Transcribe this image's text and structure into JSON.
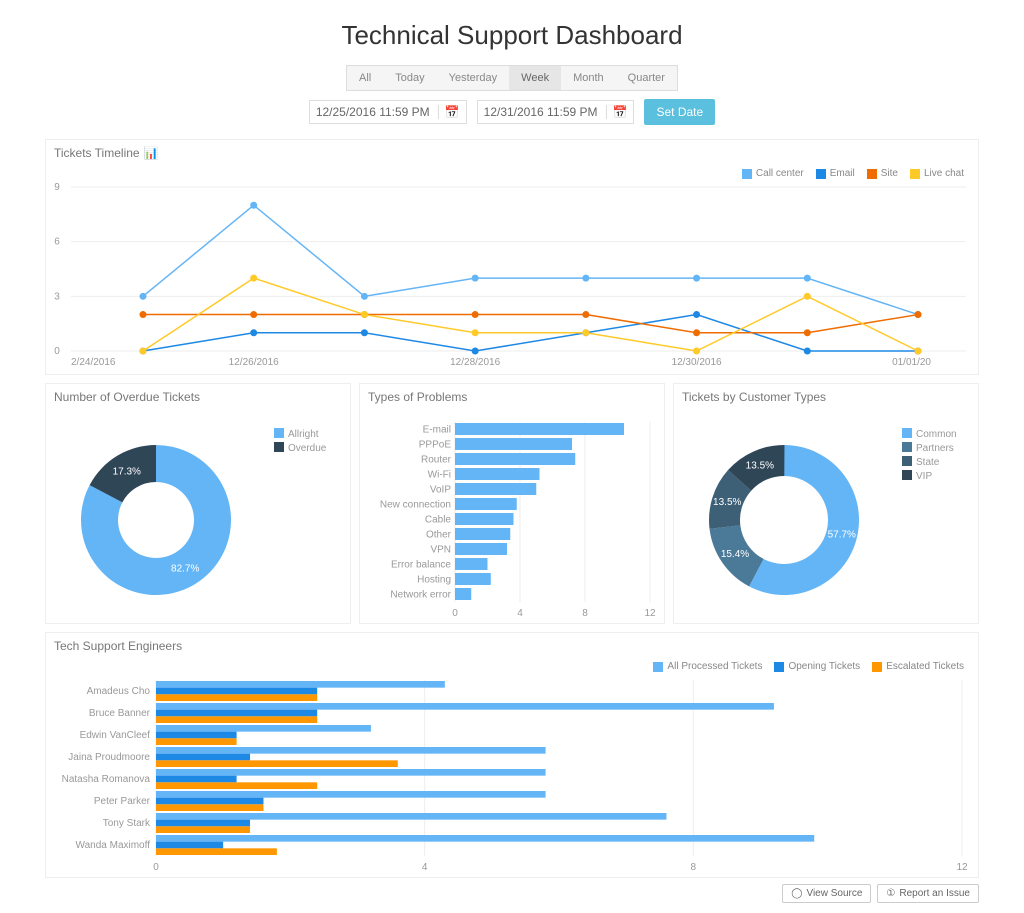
{
  "title": "Technical Support Dashboard",
  "colors": {
    "blue": "#64b5f6",
    "blue2": "#1e88e5",
    "dark": "#263238",
    "orange": "#ff9800",
    "orange2": "#ef6c00",
    "yellow": "#ffca28",
    "slate1": "#2f4657",
    "slate2": "#3d6077",
    "slate3": "#4b7998"
  },
  "controls": {
    "tabs": [
      "All",
      "Today",
      "Yesterday",
      "Week",
      "Month",
      "Quarter"
    ],
    "active_tab": 3,
    "from": "12/25/2016 11:59 PM",
    "to": "12/31/2016 11:59 PM",
    "set_label": "Set Date"
  },
  "timeline": {
    "title": "Tickets Timeline",
    "legend": [
      {
        "label": "Call center",
        "color": "#64b5f6"
      },
      {
        "label": "Email",
        "color": "#1e88e5"
      },
      {
        "label": "Site",
        "color": "#ef6c00"
      },
      {
        "label": "Live chat",
        "color": "#ffca28"
      }
    ],
    "y_ticks": [
      0,
      3,
      6,
      9
    ],
    "x_labels": [
      "2/24/2016",
      "12/26/2016",
      "12/28/2016",
      "12/30/2016",
      "01/01/20"
    ],
    "series": [
      {
        "color": "#64b5f6",
        "vals": [
          3,
          8,
          3,
          4,
          4,
          4,
          4,
          2
        ]
      },
      {
        "color": "#1e88e5",
        "vals": [
          0,
          1,
          1,
          0,
          1,
          2,
          0,
          0
        ]
      },
      {
        "color": "#ef6c00",
        "vals": [
          2,
          2,
          2,
          2,
          2,
          1,
          1,
          2
        ]
      },
      {
        "color": "#ffca28",
        "vals": [
          0,
          4,
          2,
          1,
          1,
          0,
          3,
          0
        ]
      }
    ]
  },
  "overdue": {
    "title": "Number of Overdue Tickets",
    "legend": [
      {
        "label": "Allright",
        "color": "#64b5f6"
      },
      {
        "label": "Overdue",
        "color": "#2f4657"
      }
    ],
    "slices": [
      {
        "pct": 82.7,
        "color": "#64b5f6",
        "label": "82.7%"
      },
      {
        "pct": 17.3,
        "color": "#2f4657",
        "label": "17.3%"
      }
    ]
  },
  "problems": {
    "title": "Types of Problems",
    "bar_color": "#64b5f6",
    "x_ticks": [
      0,
      4,
      8,
      12
    ],
    "rows": [
      {
        "label": "E-mail",
        "val": 10.4
      },
      {
        "label": "PPPoE",
        "val": 7.2
      },
      {
        "label": "Router",
        "val": 7.4
      },
      {
        "label": "Wi-Fi",
        "val": 5.2
      },
      {
        "label": "VoIP",
        "val": 5.0
      },
      {
        "label": "New connection",
        "val": 3.8
      },
      {
        "label": "Cable",
        "val": 3.6
      },
      {
        "label": "Other",
        "val": 3.4
      },
      {
        "label": "VPN",
        "val": 3.2
      },
      {
        "label": "Error balance",
        "val": 2.0
      },
      {
        "label": "Hosting",
        "val": 2.2
      },
      {
        "label": "Network error",
        "val": 1.0
      }
    ]
  },
  "customer_types": {
    "title": "Tickets by Customer Types",
    "legend": [
      {
        "label": "Common",
        "color": "#64b5f6"
      },
      {
        "label": "Partners",
        "color": "#4b7998"
      },
      {
        "label": "State",
        "color": "#3d6077"
      },
      {
        "label": "VIP",
        "color": "#2f4657"
      }
    ],
    "slices": [
      {
        "pct": 57.7,
        "color": "#64b5f6",
        "label": "57.7%"
      },
      {
        "pct": 15.4,
        "color": "#4b7998",
        "label": "15.4%"
      },
      {
        "pct": 13.5,
        "color": "#3d6077",
        "label": "13.5%"
      },
      {
        "pct": 13.5,
        "color": "#2f4657",
        "label": "13.5%"
      }
    ]
  },
  "engineers": {
    "title": "Tech Support Engineers",
    "legend": [
      {
        "label": "All Processed Tickets",
        "color": "#64b5f6"
      },
      {
        "label": "Opening Tickets",
        "color": "#1e88e5"
      },
      {
        "label": "Escalated Tickets",
        "color": "#ff9800"
      }
    ],
    "x_ticks": [
      0,
      4,
      8,
      12
    ],
    "rows": [
      {
        "label": "Amadeus Cho",
        "all": 4.3,
        "open": 2.4,
        "esc": 2.4
      },
      {
        "label": "Bruce Banner",
        "all": 9.2,
        "open": 2.4,
        "esc": 2.4
      },
      {
        "label": "Edwin VanCleef",
        "all": 3.2,
        "open": 1.2,
        "esc": 1.2
      },
      {
        "label": "Jaina Proudmoore",
        "all": 5.8,
        "open": 1.4,
        "esc": 3.6
      },
      {
        "label": "Natasha Romanova",
        "all": 5.8,
        "open": 1.2,
        "esc": 2.4
      },
      {
        "label": "Peter Parker",
        "all": 5.8,
        "open": 1.6,
        "esc": 1.6
      },
      {
        "label": "Tony Stark",
        "all": 7.6,
        "open": 1.4,
        "esc": 1.4
      },
      {
        "label": "Wanda Maximoff",
        "all": 9.8,
        "open": 1.0,
        "esc": 1.8
      }
    ]
  },
  "footer": {
    "view_source": "View Source",
    "report": "Report an Issue"
  }
}
